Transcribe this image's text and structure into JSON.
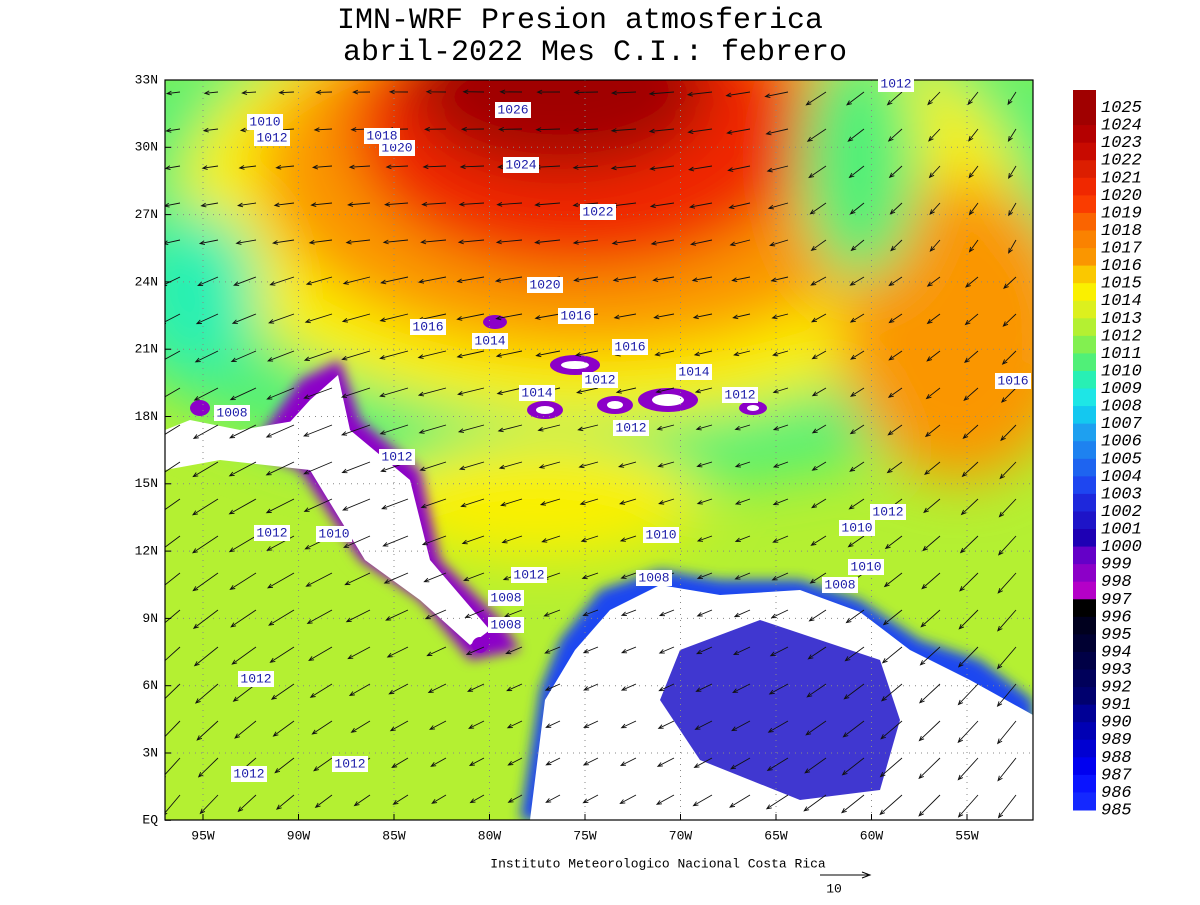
{
  "header": {
    "title_line1": "IMN-WRF  Presion atmosferica",
    "title_line2": "abril-2022 Mes C.I.: febrero"
  },
  "map": {
    "lat_labels": [
      "33N",
      "30N",
      "27N",
      "24N",
      "21N",
      "18N",
      "15N",
      "12N",
      "9N",
      "6N",
      "3N",
      "EQ"
    ],
    "lon_labels": [
      "95W",
      "90W",
      "85W",
      "80W",
      "75W",
      "70W",
      "65W",
      "60W",
      "55W"
    ],
    "contour_labels": [
      1010,
      1012,
      1026,
      1020,
      1018,
      1024,
      1022,
      1020,
      1016,
      1014,
      1016,
      1016,
      1012,
      1014,
      1012,
      1014,
      1012,
      1012,
      1016,
      1008,
      1012,
      1012,
      1010,
      1010,
      1008,
      1012,
      1008,
      1008,
      1012,
      1010,
      1010,
      1008,
      1012,
      1012,
      1012
    ],
    "vector_scale": 10,
    "footer": "Instituto Meteorologico Nacional Costa Rica"
  },
  "colorbar": {
    "levels": [
      1025,
      1024,
      1023,
      1022,
      1021,
      1020,
      1019,
      1018,
      1017,
      1016,
      1015,
      1014,
      1013,
      1012,
      1011,
      1010,
      1009,
      1008,
      1007,
      1006,
      1005,
      1004,
      1003,
      1002,
      1001,
      1000,
      999,
      998,
      997,
      996,
      995,
      994,
      993,
      992,
      991,
      990,
      989,
      988,
      987,
      986,
      985
    ],
    "colors": [
      "#a00000",
      "#a00000",
      "#b40000",
      "#c80a00",
      "#dc1e00",
      "#f02800",
      "#fa3c00",
      "#fa6400",
      "#fa8200",
      "#fa9600",
      "#fac800",
      "#faf000",
      "#dcf01e",
      "#b4f032",
      "#82f050",
      "#50f078",
      "#28f0b4",
      "#1ee6e6",
      "#14c8f0",
      "#1ea0f0",
      "#1e82f0",
      "#1e64f0",
      "#1e46f0",
      "#1e28dc",
      "#1e14c8",
      "#1e00b4",
      "#6400c8",
      "#8c00c8",
      "#b400c8",
      "#000000",
      "#00001e",
      "#000032",
      "#000046",
      "#00005a",
      "#00006e",
      "#000096",
      "#0000b4",
      "#0000d2",
      "#0000f0",
      "#0a14ff",
      "#1428ff"
    ]
  }
}
